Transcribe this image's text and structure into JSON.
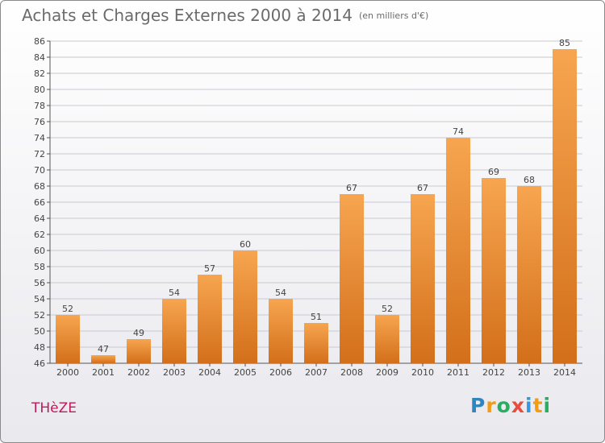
{
  "title": "Achats et Charges Externes 2000 à 2014",
  "unit": "(en milliers d'€)",
  "commune": "THèZE",
  "logo": {
    "letters": [
      "P",
      "r",
      "o",
      "x",
      "i",
      "t",
      "i"
    ],
    "colors": [
      "#2e86c1",
      "#f39c12",
      "#27ae60",
      "#e74c3c",
      "#3498db",
      "#f39c12",
      "#27ae60"
    ]
  },
  "colors": {
    "bar_light": "#f7a550",
    "bar_dark": "#d36f1a",
    "grid": "#c8c8d0"
  },
  "chart_data": {
    "type": "bar",
    "categories": [
      "2000",
      "2001",
      "2002",
      "2003",
      "2004",
      "2005",
      "2006",
      "2007",
      "2008",
      "2009",
      "2010",
      "2011",
      "2012",
      "2013",
      "2014"
    ],
    "values": [
      52,
      47,
      49,
      54,
      57,
      60,
      54,
      51,
      67,
      52,
      67,
      74,
      69,
      68,
      85
    ],
    "ylim": [
      46,
      86
    ],
    "ytick_step": 2,
    "grid": true,
    "xlabel": "",
    "ylabel": ""
  }
}
